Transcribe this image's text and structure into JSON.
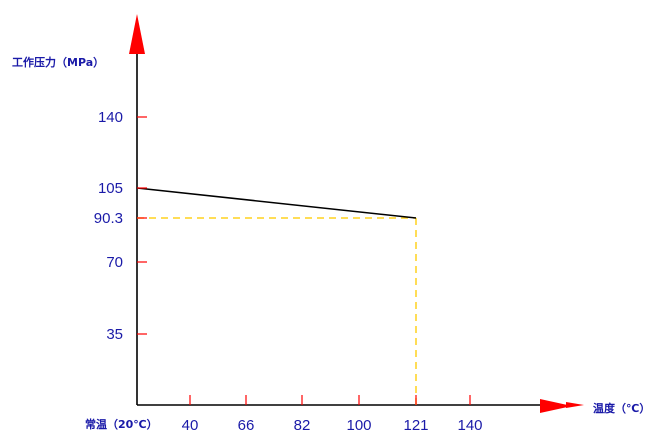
{
  "chart_data": {
    "type": "line",
    "ylabel": "工作压力（MPa）",
    "xlabel": "温度（℃）",
    "x_origin_label": "常温（20℃）",
    "xlim": [
      20,
      160
    ],
    "ylim": [
      0,
      175
    ],
    "x_ticks": [
      {
        "value": 40,
        "label": "40"
      },
      {
        "value": 66,
        "label": "66"
      },
      {
        "value": 82,
        "label": "82"
      },
      {
        "value": 100,
        "label": "100"
      },
      {
        "value": 121,
        "label": "121"
      },
      {
        "value": 140,
        "label": "140"
      }
    ],
    "y_ticks": [
      {
        "value": 35,
        "label": "35"
      },
      {
        "value": 70,
        "label": "70"
      },
      {
        "value": 90.3,
        "label": "90.3"
      },
      {
        "value": 105,
        "label": "105"
      },
      {
        "value": 140,
        "label": "140"
      }
    ],
    "series": [
      {
        "x": [
          20,
          121
        ],
        "y": [
          105,
          90.3
        ]
      }
    ],
    "guide_point": {
      "x": 121,
      "y": 90.3
    },
    "colors": {
      "axis": "#000000",
      "arrow": "#ff0000",
      "tick": "#ff0000",
      "series": "#000000",
      "guide": "#ffd21f",
      "labels": "#1a1aa8"
    },
    "grid": false,
    "legend": "none"
  }
}
